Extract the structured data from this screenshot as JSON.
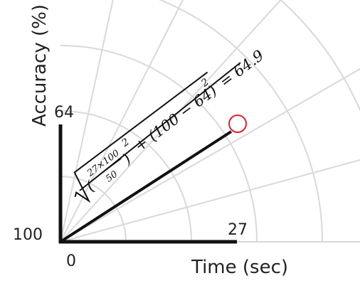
{
  "axes": {
    "y_label": "Accuracy (%)",
    "x_label": "Time (sec)",
    "y_top_tick": "64",
    "y_bottom_tick": "100",
    "x_origin_tick": "0",
    "x_end_tick": "27"
  },
  "formula": {
    "numerator": "27×100",
    "denominator": "50",
    "exp1": "2",
    "middle": "+ (100 − 64)",
    "exp2": "2",
    "result": "= 64.9"
  },
  "colors": {
    "axis": "#111111",
    "grid": "#d9d9d9",
    "marker": "#d9232e"
  }
}
